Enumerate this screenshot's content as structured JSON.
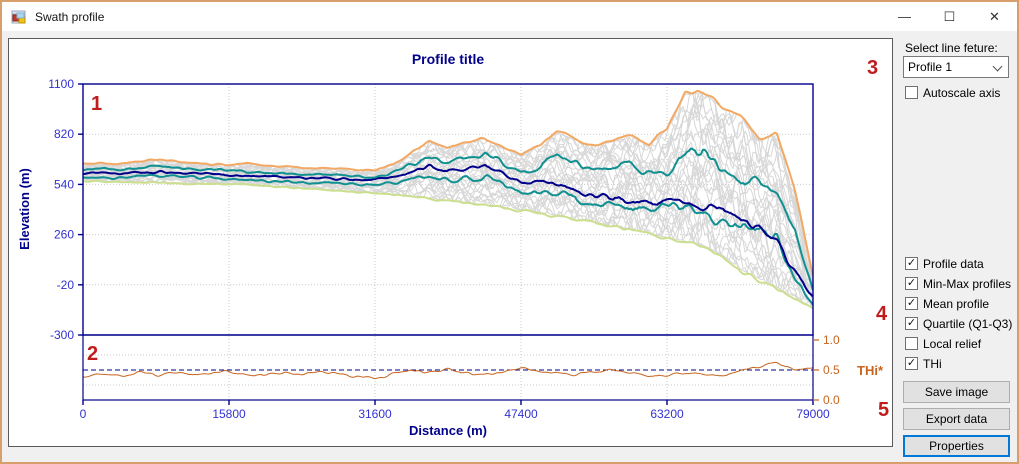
{
  "window": {
    "title": "Swath profile",
    "controls": {
      "minimize": "—",
      "maximize": "☐",
      "close": "✕"
    }
  },
  "panel": {
    "select_label": "Select line feture:",
    "select_value": "Profile 1",
    "autoscale": {
      "label": "Autoscale axis",
      "checked": false
    },
    "toggles": [
      {
        "label": "Profile data",
        "checked": true
      },
      {
        "label": "Min-Max profiles",
        "checked": true
      },
      {
        "label": "Mean profile",
        "checked": true
      },
      {
        "label": "Quartile (Q1-Q3)",
        "checked": true
      },
      {
        "label": "Local relief",
        "checked": false
      },
      {
        "label": "THi",
        "checked": true
      }
    ],
    "buttons": [
      {
        "label": "Save image",
        "focused": false
      },
      {
        "label": "Export data",
        "focused": false
      },
      {
        "label": "Properties",
        "focused": true
      }
    ]
  },
  "annotations": {
    "items": [
      "1",
      "2",
      "3",
      "4",
      "5"
    ]
  },
  "colors": {
    "axis": "#00008B",
    "tick_label": "#3232d2",
    "thi_axis": "#c9641c",
    "grid": "#c9c9c9",
    "annotation_red": "#c11c1c"
  },
  "chart_data": {
    "type": "line",
    "title": "Profile title",
    "xlabel": "Distance (m)",
    "ylabel": "Elevation (m)",
    "lower_right_label": "THi*",
    "x_range": [
      0,
      79000
    ],
    "x_ticks": [
      0,
      15800,
      31600,
      47400,
      63200,
      79000
    ],
    "elev_range": [
      -300,
      1100
    ],
    "elev_ticks": [
      1100,
      820,
      540,
      260,
      -20,
      -300
    ],
    "thi_range": [
      0,
      1
    ],
    "thi_ticks": [
      0.0,
      0.5,
      1.0
    ],
    "thi_reference": 0.5,
    "grid": "dotted",
    "x_step": 1975,
    "series": [
      {
        "name": "Max profile",
        "panel": "main",
        "color": "#F3A964",
        "width": 2,
        "values": [
          655,
          660,
          650,
          666,
          680,
          670,
          660,
          652,
          648,
          656,
          645,
          640,
          634,
          630,
          628,
          622,
          618,
          650,
          720,
          782,
          742,
          772,
          800,
          748,
          700,
          762,
          832,
          792,
          760,
          782,
          812,
          762,
          852,
          1052,
          1060,
          978,
          938,
          792,
          832,
          520,
          30
        ]
      },
      {
        "name": "Q3 profile",
        "panel": "main",
        "color": "#109090",
        "width": 2,
        "values": [
          622,
          626,
          620,
          630,
          640,
          633,
          626,
          620,
          615,
          611,
          606,
          602,
          598,
          594,
          590,
          585,
          580,
          604,
          650,
          700,
          664,
          690,
          714,
          660,
          610,
          640,
          700,
          660,
          622,
          642,
          660,
          612,
          600,
          700,
          728,
          640,
          560,
          546,
          500,
          302,
          -58
        ]
      },
      {
        "name": "Mean profile",
        "panel": "main",
        "color": "#00008B",
        "width": 2,
        "values": [
          600,
          603,
          598,
          606,
          611,
          606,
          600,
          596,
          592,
          588,
          585,
          582,
          578,
          575,
          572,
          568,
          564,
          580,
          610,
          640,
          614,
          630,
          640,
          600,
          540,
          556,
          540,
          510,
          480,
          462,
          446,
          440,
          452,
          448,
          430,
          384,
          336,
          290,
          232,
          62,
          -88
        ]
      },
      {
        "name": "Q1 profile",
        "panel": "main",
        "color": "#109090",
        "width": 2,
        "values": [
          580,
          582,
          578,
          585,
          589,
          585,
          578,
          574,
          570,
          566,
          562,
          558,
          554,
          550,
          546,
          542,
          538,
          548,
          570,
          585,
          560,
          574,
          580,
          545,
          490,
          505,
          494,
          464,
          430,
          420,
          400,
          394,
          420,
          404,
          380,
          340,
          300,
          318,
          250,
          20,
          -128
        ]
      },
      {
        "name": "Min profile",
        "panel": "main",
        "color": "#CBDF8E",
        "width": 2,
        "values": [
          558,
          556,
          554,
          552,
          550,
          548,
          545,
          542,
          540,
          536,
          530,
          524,
          518,
          512,
          505,
          498,
          490,
          482,
          472,
          460,
          448,
          436,
          424,
          410,
          395,
          380,
          362,
          344,
          325,
          305,
          285,
          262,
          238,
          215,
          190,
          140,
          60,
          10,
          -40,
          -100,
          -150
        ]
      },
      {
        "name": "THi",
        "panel": "lower",
        "color": "#C8641E",
        "width": 1,
        "values": [
          0.38,
          0.43,
          0.4,
          0.46,
          0.42,
          0.45,
          0.41,
          0.44,
          0.47,
          0.43,
          0.4,
          0.45,
          0.42,
          0.47,
          0.44,
          0.4,
          0.36,
          0.44,
          0.48,
          0.46,
          0.5,
          0.45,
          0.42,
          0.47,
          0.53,
          0.48,
          0.44,
          0.41,
          0.47,
          0.51,
          0.46,
          0.43,
          0.41,
          0.46,
          0.43,
          0.4,
          0.47,
          0.55,
          0.62,
          0.48,
          0.55
        ]
      }
    ],
    "ensemble": {
      "name": "Profile data",
      "color": "#d7d7d7",
      "count": 34
    }
  }
}
